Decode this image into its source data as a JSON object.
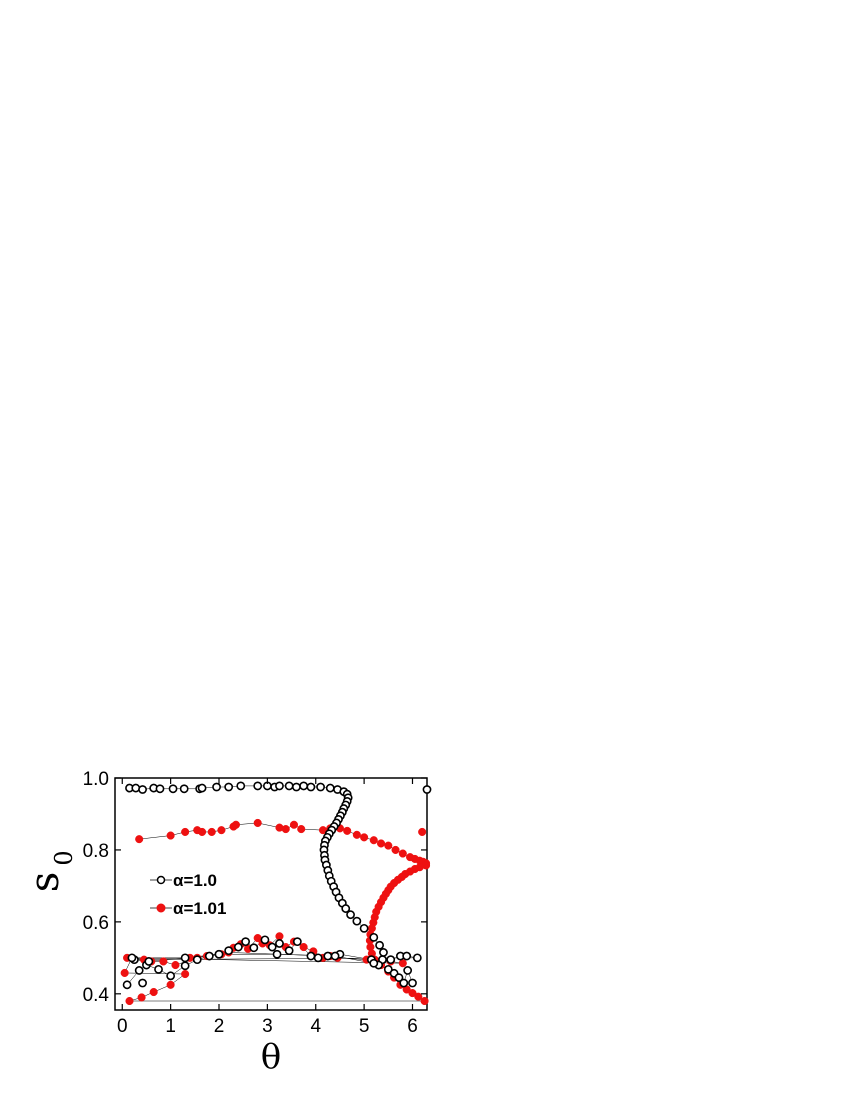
{
  "chart_data": {
    "type": "scatter",
    "xlabel": "θ",
    "ylabel": "s",
    "ylabel_subscript": "0",
    "xlim": [
      -0.15,
      6.3
    ],
    "ylim": [
      0.355,
      1.0
    ],
    "xticks": [
      0,
      1,
      2,
      3,
      4,
      5,
      6
    ],
    "yticks": [
      0.4,
      0.6,
      0.8,
      1.0
    ],
    "ytick_labels": [
      "0.4",
      "0.6",
      "0.8",
      "1.0"
    ],
    "grid": false,
    "legend_position": "center-left",
    "series": [
      {
        "name": "α=1.0",
        "marker": "open-circle",
        "color": "#000000",
        "points": [
          [
            0.15,
            0.972
          ],
          [
            0.28,
            0.972
          ],
          [
            0.42,
            0.968
          ],
          [
            0.65,
            0.972
          ],
          [
            0.78,
            0.97
          ],
          [
            1.05,
            0.97
          ],
          [
            1.28,
            0.97
          ],
          [
            1.6,
            0.97
          ],
          [
            1.65,
            0.972
          ],
          [
            1.95,
            0.975
          ],
          [
            2.2,
            0.975
          ],
          [
            2.45,
            0.978
          ],
          [
            2.8,
            0.978
          ],
          [
            3.0,
            0.978
          ],
          [
            3.15,
            0.975
          ],
          [
            3.25,
            0.978
          ],
          [
            3.45,
            0.978
          ],
          [
            3.6,
            0.975
          ],
          [
            3.75,
            0.978
          ],
          [
            3.9,
            0.975
          ],
          [
            4.1,
            0.975
          ],
          [
            4.3,
            0.972
          ],
          [
            4.45,
            0.968
          ],
          [
            4.58,
            0.962
          ],
          [
            4.65,
            0.955
          ],
          [
            4.67,
            0.945
          ],
          [
            4.65,
            0.935
          ],
          [
            4.62,
            0.925
          ],
          [
            4.58,
            0.915
          ],
          [
            4.55,
            0.905
          ],
          [
            4.51,
            0.895
          ],
          [
            4.47,
            0.885
          ],
          [
            4.43,
            0.875
          ],
          [
            4.38,
            0.865
          ],
          [
            4.33,
            0.855
          ],
          [
            4.28,
            0.845
          ],
          [
            4.24,
            0.835
          ],
          [
            4.2,
            0.825
          ],
          [
            4.18,
            0.813
          ],
          [
            4.17,
            0.8
          ],
          [
            4.18,
            0.785
          ],
          [
            4.19,
            0.772
          ],
          [
            4.22,
            0.758
          ],
          [
            4.25,
            0.743
          ],
          [
            4.28,
            0.728
          ],
          [
            4.32,
            0.713
          ],
          [
            4.37,
            0.698
          ],
          [
            4.42,
            0.683
          ],
          [
            4.48,
            0.667
          ],
          [
            4.55,
            0.652
          ],
          [
            4.62,
            0.637
          ],
          [
            4.72,
            0.62
          ],
          [
            4.85,
            0.602
          ],
          [
            5.0,
            0.582
          ],
          [
            5.2,
            0.557
          ],
          [
            5.32,
            0.535
          ],
          [
            5.4,
            0.515
          ],
          [
            5.38,
            0.495
          ],
          [
            5.3,
            0.48
          ],
          [
            5.5,
            0.468
          ],
          [
            5.62,
            0.457
          ],
          [
            5.72,
            0.445
          ],
          [
            5.82,
            0.43
          ],
          [
            5.9,
            0.465
          ],
          [
            6.0,
            0.43
          ],
          [
            6.3,
            0.968
          ],
          [
            0.1,
            0.425
          ],
          [
            0.35,
            0.465
          ],
          [
            0.5,
            0.48
          ],
          [
            0.75,
            0.468
          ],
          [
            1.0,
            0.45
          ],
          [
            1.3,
            0.478
          ],
          [
            1.55,
            0.495
          ],
          [
            1.8,
            0.505
          ],
          [
            2.0,
            0.51
          ],
          [
            2.2,
            0.52
          ],
          [
            2.4,
            0.53
          ],
          [
            2.55,
            0.545
          ],
          [
            2.72,
            0.528
          ],
          [
            2.95,
            0.55
          ],
          [
            3.1,
            0.53
          ],
          [
            3.25,
            0.54
          ],
          [
            3.45,
            0.52
          ],
          [
            3.62,
            0.545
          ],
          [
            3.9,
            0.505
          ],
          [
            4.05,
            0.5
          ],
          [
            4.25,
            0.505
          ],
          [
            4.5,
            0.51
          ],
          [
            5.15,
            0.495
          ],
          [
            5.55,
            0.495
          ],
          [
            5.75,
            0.505
          ],
          [
            5.88,
            0.505
          ],
          [
            6.1,
            0.5
          ],
          [
            0.25,
            0.495
          ],
          [
            0.55,
            0.49
          ],
          [
            1.3,
            0.5
          ],
          [
            2.0,
            0.51
          ],
          [
            3.2,
            0.51
          ],
          [
            4.4,
            0.505
          ],
          [
            5.2,
            0.485
          ],
          [
            0.42,
            0.43
          ],
          [
            0.2,
            0.5
          ]
        ]
      },
      {
        "name": "α=1.01",
        "marker": "filled-circle",
        "color": "#ee1111",
        "points": [
          [
            0.35,
            0.83
          ],
          [
            1.0,
            0.84
          ],
          [
            1.3,
            0.85
          ],
          [
            1.55,
            0.855
          ],
          [
            1.65,
            0.85
          ],
          [
            1.85,
            0.85
          ],
          [
            2.05,
            0.855
          ],
          [
            2.3,
            0.865
          ],
          [
            2.35,
            0.87
          ],
          [
            2.8,
            0.875
          ],
          [
            3.25,
            0.862
          ],
          [
            3.38,
            0.858
          ],
          [
            3.55,
            0.87
          ],
          [
            3.7,
            0.858
          ],
          [
            4.15,
            0.855
          ],
          [
            4.3,
            0.86
          ],
          [
            4.5,
            0.86
          ],
          [
            4.65,
            0.853
          ],
          [
            4.85,
            0.842
          ],
          [
            5.0,
            0.835
          ],
          [
            5.2,
            0.827
          ],
          [
            5.35,
            0.818
          ],
          [
            5.5,
            0.812
          ],
          [
            5.65,
            0.8
          ],
          [
            5.8,
            0.79
          ],
          [
            5.95,
            0.78
          ],
          [
            6.05,
            0.775
          ],
          [
            6.15,
            0.77
          ],
          [
            6.22,
            0.767
          ],
          [
            6.28,
            0.763
          ],
          [
            6.2,
            0.85
          ],
          [
            6.28,
            0.757
          ],
          [
            6.15,
            0.752
          ],
          [
            6.05,
            0.747
          ],
          [
            5.95,
            0.74
          ],
          [
            5.85,
            0.733
          ],
          [
            5.78,
            0.725
          ],
          [
            5.7,
            0.717
          ],
          [
            5.62,
            0.708
          ],
          [
            5.55,
            0.698
          ],
          [
            5.5,
            0.688
          ],
          [
            5.45,
            0.678
          ],
          [
            5.4,
            0.667
          ],
          [
            5.35,
            0.655
          ],
          [
            5.3,
            0.642
          ],
          [
            5.25,
            0.628
          ],
          [
            5.22,
            0.613
          ],
          [
            5.19,
            0.598
          ],
          [
            5.16,
            0.582
          ],
          [
            5.13,
            0.565
          ],
          [
            5.12,
            0.548
          ],
          [
            5.13,
            0.53
          ],
          [
            5.16,
            0.512
          ],
          [
            5.22,
            0.495
          ],
          [
            5.35,
            0.48
          ],
          [
            5.5,
            0.462
          ],
          [
            5.62,
            0.445
          ],
          [
            5.75,
            0.425
          ],
          [
            5.88,
            0.412
          ],
          [
            6.0,
            0.402
          ],
          [
            6.12,
            0.392
          ],
          [
            6.25,
            0.38
          ],
          [
            0.15,
            0.38
          ],
          [
            0.4,
            0.39
          ],
          [
            0.65,
            0.405
          ],
          [
            1.0,
            0.425
          ],
          [
            1.3,
            0.455
          ],
          [
            0.05,
            0.458
          ],
          [
            0.2,
            0.5
          ],
          [
            0.45,
            0.495
          ],
          [
            0.6,
            0.49
          ],
          [
            0.85,
            0.49
          ],
          [
            1.1,
            0.48
          ],
          [
            1.55,
            0.5
          ],
          [
            1.75,
            0.505
          ],
          [
            2.05,
            0.51
          ],
          [
            2.3,
            0.528
          ],
          [
            2.45,
            0.538
          ],
          [
            2.6,
            0.525
          ],
          [
            2.8,
            0.555
          ],
          [
            2.9,
            0.54
          ],
          [
            3.05,
            0.535
          ],
          [
            3.25,
            0.56
          ],
          [
            3.38,
            0.53
          ],
          [
            3.55,
            0.545
          ],
          [
            3.75,
            0.53
          ],
          [
            3.95,
            0.518
          ],
          [
            4.15,
            0.5
          ],
          [
            4.45,
            0.5
          ],
          [
            5.05,
            0.495
          ],
          [
            5.55,
            0.49
          ],
          [
            5.8,
            0.485
          ],
          [
            0.1,
            0.5
          ],
          [
            1.4,
            0.5
          ],
          [
            2.2,
            0.515
          ],
          [
            4.3,
            0.505
          ]
        ]
      }
    ]
  }
}
